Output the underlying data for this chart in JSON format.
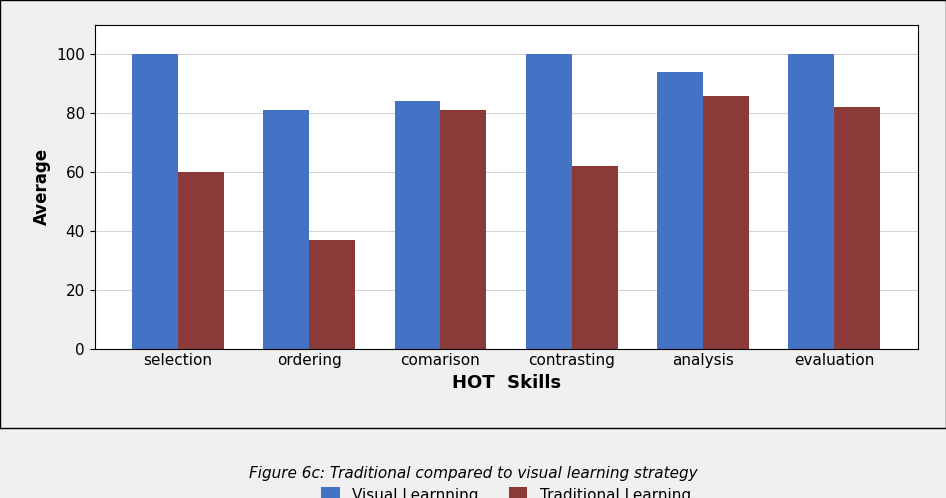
{
  "categories": [
    "selection",
    "ordering",
    "comarison",
    "contrasting",
    "analysis",
    "evaluation"
  ],
  "visual_learning": [
    100,
    81,
    84,
    100,
    94,
    100
  ],
  "traditional_learning": [
    60,
    37,
    81,
    62,
    86,
    82
  ],
  "visual_color": "#4472C4",
  "traditional_color": "#8B3A3A",
  "ylabel": "Average",
  "xlabel": "HOT  Skills",
  "ylim": [
    0,
    110
  ],
  "yticks": [
    0,
    20,
    40,
    60,
    80,
    100
  ],
  "legend_visual": "Visual Learnning",
  "legend_traditional": "Traditional Learning",
  "caption": "Figure 6c: Traditional compared to visual learning strategy",
  "bar_width": 0.35,
  "ylabel_fontsize": 12,
  "xlabel_fontsize": 13,
  "tick_fontsize": 11,
  "legend_fontsize": 11,
  "caption_fontsize": 11,
  "figure_facecolor": "#f0f0f0",
  "axes_facecolor": "#ffffff"
}
